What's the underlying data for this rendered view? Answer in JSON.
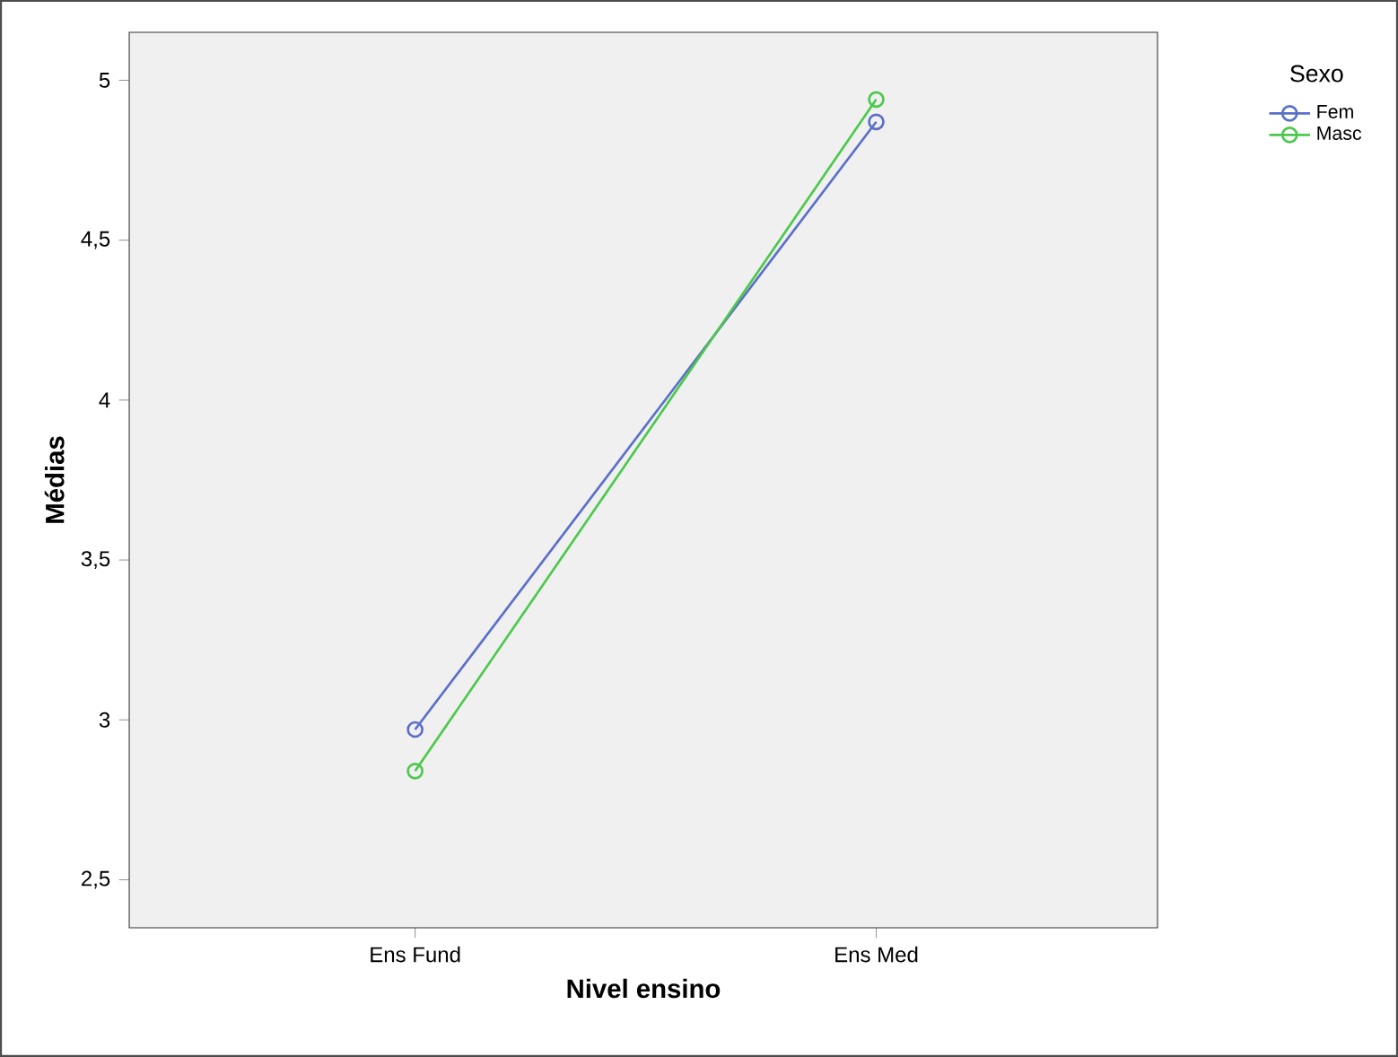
{
  "chart_data": {
    "type": "line",
    "xlabel": "Nivel ensino",
    "ylabel": "Médias",
    "legend_title": "Sexo",
    "categories": [
      "Ens Fund",
      "Ens Med"
    ],
    "series": [
      {
        "name": "Fem",
        "color": "#5b6fc8",
        "values": [
          2.97,
          4.87
        ]
      },
      {
        "name": "Masc",
        "color": "#4cc84c",
        "values": [
          2.84,
          4.94
        ]
      }
    ],
    "ylim": [
      2.35,
      5.15
    ],
    "yticks": [
      {
        "value": 2.5,
        "label": "2,5"
      },
      3,
      {
        "value": 3.5,
        "label": "3,5"
      },
      4,
      {
        "value": 4.5,
        "label": "4,5"
      },
      5
    ],
    "marker": "circle",
    "line_style": "solid",
    "legend": "top right",
    "grid": false
  }
}
